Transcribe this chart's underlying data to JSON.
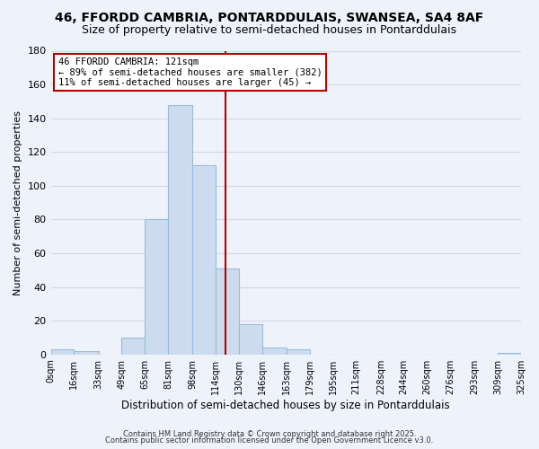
{
  "title1": "46, FFORDD CAMBRIA, PONTARDDULAIS, SWANSEA, SA4 8AF",
  "title2": "Size of property relative to semi-detached houses in Pontarddulais",
  "xlabel": "Distribution of semi-detached houses by size in Pontarddulais",
  "ylabel": "Number of semi-detached properties",
  "bin_edges": [
    0,
    16,
    33,
    49,
    65,
    81,
    98,
    114,
    130,
    146,
    163,
    179,
    195,
    211,
    228,
    244,
    260,
    276,
    293,
    309,
    325
  ],
  "bar_heights": [
    3,
    2,
    0,
    10,
    80,
    148,
    112,
    51,
    18,
    4,
    3,
    0,
    0,
    0,
    0,
    0,
    0,
    0,
    0,
    1
  ],
  "tick_labels": [
    "0sqm",
    "16sqm",
    "33sqm",
    "49sqm",
    "65sqm",
    "81sqm",
    "98sqm",
    "114sqm",
    "130sqm",
    "146sqm",
    "163sqm",
    "179sqm",
    "195sqm",
    "211sqm",
    "228sqm",
    "244sqm",
    "260sqm",
    "276sqm",
    "293sqm",
    "309sqm",
    "325sqm"
  ],
  "bar_color": "#ccdcee",
  "bar_edge_color": "#99bbdd",
  "vline_x": 121,
  "vline_color": "#bb0000",
  "box_text_line1": "46 FFORDD CAMBRIA: 121sqm",
  "box_text_line2": "← 89% of semi-detached houses are smaller (382)",
  "box_text_line3": "11% of semi-detached houses are larger (45) →",
  "box_color": "white",
  "box_edge_color": "#bb0000",
  "ylim": [
    0,
    180
  ],
  "yticks": [
    0,
    20,
    40,
    60,
    80,
    100,
    120,
    140,
    160,
    180
  ],
  "footer1": "Contains HM Land Registry data © Crown copyright and database right 2025.",
  "footer2": "Contains public sector information licensed under the Open Government Licence v3.0.",
  "background_color": "#eef2fa",
  "grid_color": "#d0d8e8"
}
